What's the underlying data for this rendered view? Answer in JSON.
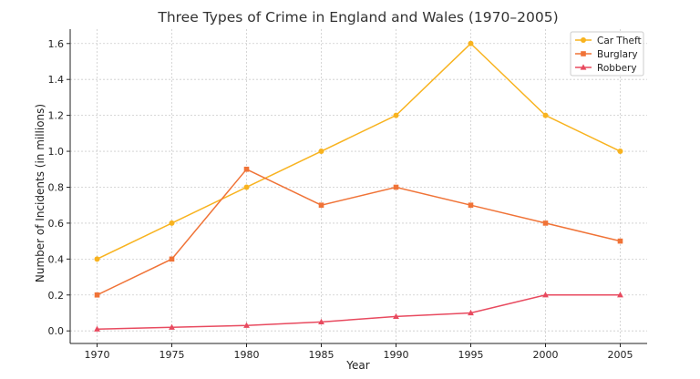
{
  "chart_data": {
    "type": "line",
    "title": "Three Types of Crime in England and Wales (1970–2005)",
    "xlabel": "Year",
    "ylabel": "Number of Incidents (in millions)",
    "x": [
      1970,
      1975,
      1980,
      1985,
      1990,
      1995,
      2000,
      2005
    ],
    "x_tick_labels": [
      "1970",
      "1975",
      "1980",
      "1985",
      "1990",
      "1995",
      "2000",
      "2005"
    ],
    "y_ticks": [
      0.0,
      0.2,
      0.4,
      0.6,
      0.8,
      1.0,
      1.2,
      1.4,
      1.6
    ],
    "y_tick_labels": [
      "0.0",
      "0.2",
      "0.4",
      "0.6",
      "0.8",
      "1.0",
      "1.2",
      "1.4",
      "1.6"
    ],
    "xlim": [
      1968.2,
      2006.8
    ],
    "ylim": [
      -0.07,
      1.68
    ],
    "grid": true,
    "legend_position": "top-right",
    "series": [
      {
        "name": "Car Theft",
        "color": "#f8b31f",
        "marker": "circle",
        "values": [
          0.4,
          0.6,
          0.8,
          1.0,
          1.2,
          1.6,
          1.2,
          1.0
        ]
      },
      {
        "name": "Burglary",
        "color": "#f07337",
        "marker": "square",
        "values": [
          0.2,
          0.4,
          0.9,
          0.7,
          0.8,
          0.7,
          0.6,
          0.5
        ]
      },
      {
        "name": "Robbery",
        "color": "#e84a5f",
        "marker": "triangle",
        "values": [
          0.01,
          0.02,
          0.03,
          0.05,
          0.08,
          0.1,
          0.2,
          0.2
        ]
      }
    ]
  }
}
